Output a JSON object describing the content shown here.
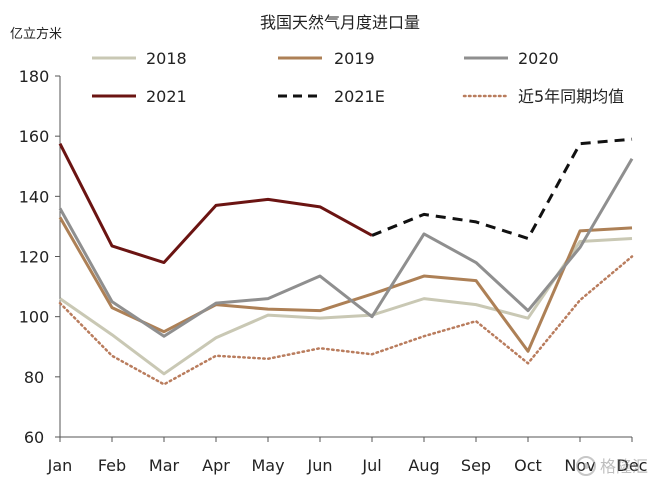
{
  "chart_data": {
    "type": "line",
    "title": "我国天然气月度进口量",
    "unit_label": "亿立方米",
    "ylim": [
      60,
      180
    ],
    "y_ticks": [
      60,
      80,
      100,
      120,
      140,
      160,
      180
    ],
    "categories": [
      "Jan",
      "Feb",
      "Mar",
      "Apr",
      "May",
      "Jun",
      "Jul",
      "Aug",
      "Sep",
      "Oct",
      "Nov",
      "Dec"
    ],
    "grid": false,
    "legend_position": "top",
    "series": [
      {
        "name": "2018",
        "color": "#c9c8b4",
        "style": "solid",
        "values": [
          106,
          94,
          81,
          93,
          100.5,
          99.5,
          100.5,
          106,
          104,
          99.5,
          125,
          126
        ]
      },
      {
        "name": "2019",
        "color": "#ad8056",
        "style": "solid",
        "values": [
          133,
          103,
          95,
          104,
          102.5,
          102,
          107.5,
          113.5,
          112,
          88.5,
          128.5,
          129.5
        ]
      },
      {
        "name": "2020",
        "color": "#8f8f8f",
        "style": "solid",
        "values": [
          136,
          105,
          93.5,
          104.5,
          106,
          113.5,
          100,
          127.5,
          118,
          102,
          123,
          152.5
        ]
      },
      {
        "name": "2021",
        "color": "#6b1412",
        "style": "solid",
        "values": [
          157.5,
          123.5,
          118,
          137,
          139,
          136.5,
          127,
          null,
          null,
          null,
          null,
          null
        ]
      },
      {
        "name": "2021E",
        "color": "#111111",
        "style": "dashed",
        "values": [
          null,
          null,
          null,
          null,
          null,
          null,
          127,
          134,
          131.5,
          126,
          157.5,
          159
        ]
      },
      {
        "name": "近5年同期均值",
        "color": "#b97c5d",
        "style": "dotted",
        "values": [
          104.5,
          87,
          77.5,
          87,
          86,
          89.5,
          87.5,
          93.5,
          98.5,
          84.5,
          105.5,
          120
        ]
      }
    ]
  },
  "watermark": {
    "text": "格隆汇"
  }
}
